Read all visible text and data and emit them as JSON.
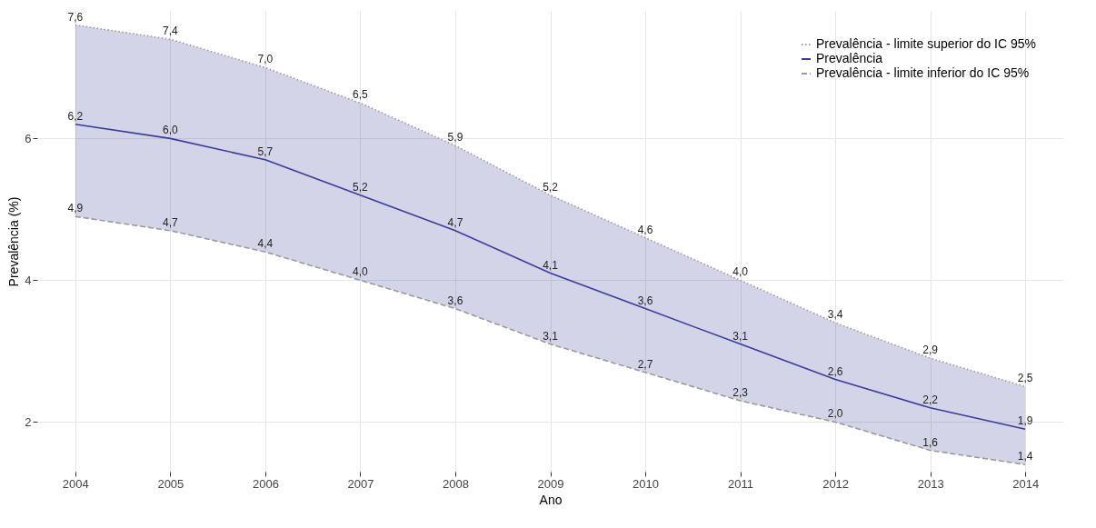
{
  "chart_data": {
    "type": "line",
    "xlabel": "Ano",
    "ylabel": "Prevalência (%)",
    "x": [
      2004,
      2005,
      2006,
      2007,
      2008,
      2009,
      2010,
      2011,
      2012,
      2013,
      2014
    ],
    "series": [
      {
        "name": "Prevalência - limite superior do IC 95%",
        "color": "#9a9a9a",
        "line_style": "dotted",
        "values": [
          7.6,
          7.4,
          7.0,
          6.5,
          5.9,
          5.2,
          4.6,
          4.0,
          3.4,
          2.9,
          2.5
        ],
        "value_labels": [
          "7,6",
          "7,4",
          "7,0",
          "6,5",
          "5,9",
          "5,2",
          "4,6",
          "4,0",
          "3,4",
          "2,9",
          "2,5"
        ]
      },
      {
        "name": "Prevalência",
        "color": "#3b3b9c",
        "line_style": "solid",
        "values": [
          6.2,
          6.0,
          5.7,
          5.2,
          4.7,
          4.1,
          3.6,
          3.1,
          2.6,
          2.2,
          1.9
        ],
        "value_labels": [
          "6,2",
          "6,0",
          "5,7",
          "5,2",
          "4,7",
          "4,1",
          "3,6",
          "3,1",
          "2,6",
          "2,2",
          "1,9"
        ],
        "lower": [
          4.9,
          4.7,
          4.4,
          4.0,
          3.6,
          3.1,
          2.7,
          2.3,
          2.0,
          1.6,
          1.4
        ],
        "upper": [
          7.6,
          7.4,
          7.0,
          6.5,
          5.9,
          5.2,
          4.6,
          4.0,
          3.4,
          2.9,
          2.5
        ]
      },
      {
        "name": "Prevalência - limite inferior do IC 95%",
        "color": "#9a9a9a",
        "line_style": "dashed",
        "values": [
          4.9,
          4.7,
          4.4,
          4.0,
          3.6,
          3.1,
          2.7,
          2.3,
          2.0,
          1.6,
          1.4
        ],
        "value_labels": [
          "4,9",
          "4,7",
          "4,4",
          "4,0",
          "3,6",
          "3,1",
          "2,7",
          "2,3",
          "2,0",
          "1,6",
          "1,4"
        ]
      }
    ],
    "xlim": [
      2003.6,
      2014.4
    ],
    "xticks": [
      2004,
      2005,
      2006,
      2007,
      2008,
      2009,
      2010,
      2011,
      2012,
      2013,
      2014
    ],
    "ylim": [
      1.3,
      7.8
    ],
    "yticks": [
      2,
      4,
      6
    ],
    "grid": true,
    "legend": "top right",
    "marker": "none"
  }
}
